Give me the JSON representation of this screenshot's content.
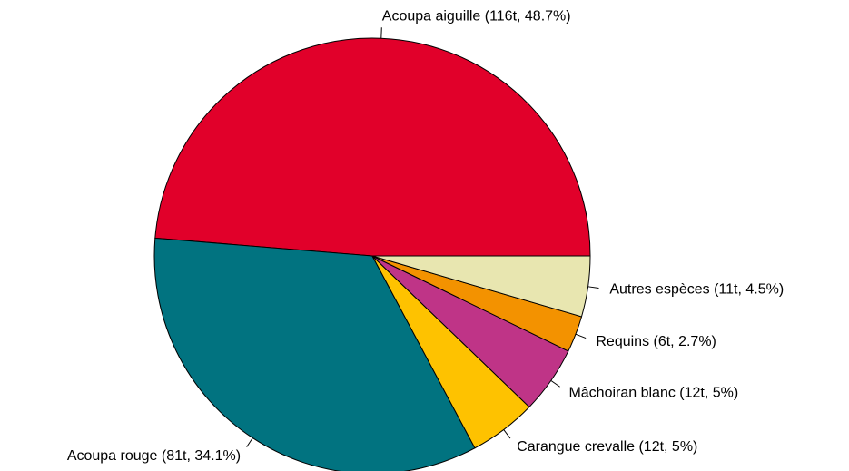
{
  "chart_data": {
    "type": "pie",
    "categories": [
      "Acoupa aiguille (116t, 48.7%)",
      "Acoupa rouge (81t, 34.1%)",
      "Carangue crevalle (12t, 5%)",
      "Mâchoiran blanc (12t, 5%)",
      "Requins (6t, 2.7%)",
      "Autres espèces (11t, 4.5%)"
    ],
    "values": [
      48.7,
      34.1,
      5,
      5,
      2.7,
      4.5
    ],
    "colors": [
      "#e1002a",
      "#017380",
      "#fec200",
      "#bf3487",
      "#f39200",
      "#e8e6b0"
    ]
  }
}
